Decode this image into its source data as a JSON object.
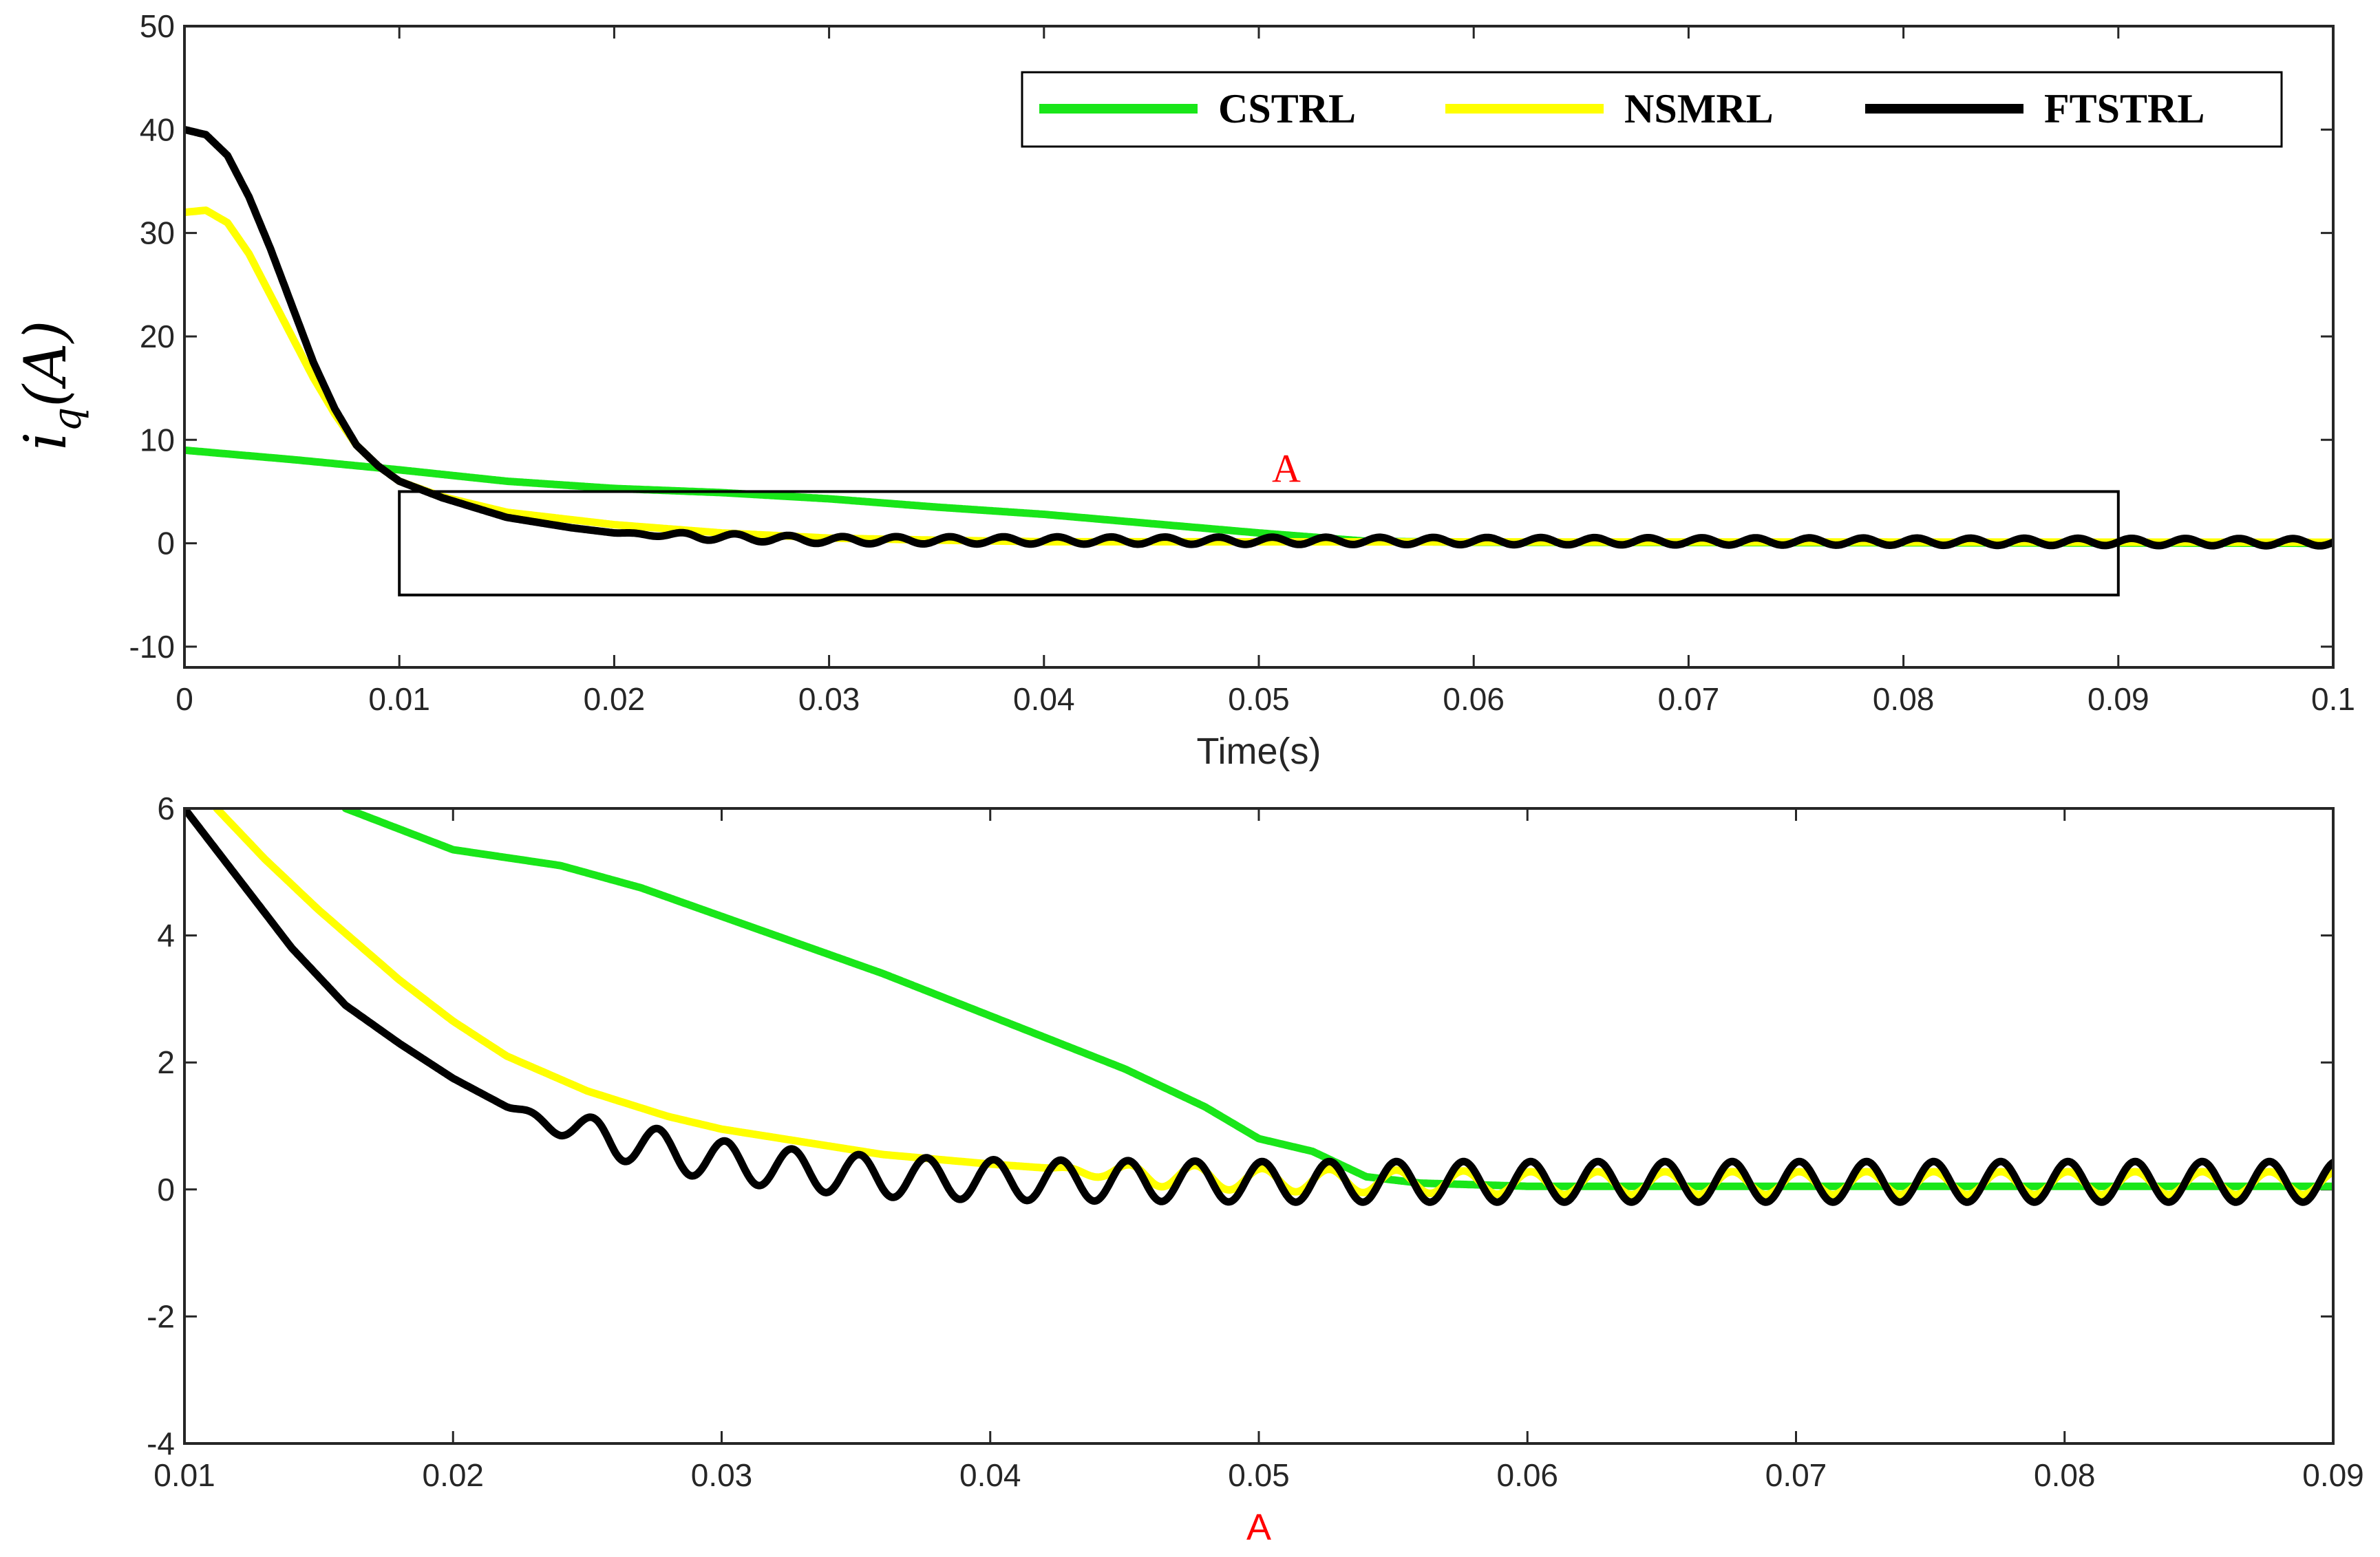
{
  "chart_data": [
    {
      "type": "line",
      "id": "top",
      "xlabel": "Time(s)",
      "ylabel": {
        "main": "i",
        "sub": "q",
        "rest": "(A)"
      },
      "xlim": [
        0,
        0.1
      ],
      "ylim": [
        -12,
        50
      ],
      "xticks": [
        0,
        0.01,
        0.02,
        0.03,
        0.04,
        0.05,
        0.06,
        0.07,
        0.08,
        0.09,
        0.1
      ],
      "xtick_labels": [
        "0",
        "0.01",
        "0.02",
        "0.03",
        "0.04",
        "0.05",
        "0.06",
        "0.07",
        "0.08",
        "0.09",
        "0.1"
      ],
      "yticks": [
        -10,
        0,
        10,
        20,
        30,
        40,
        50
      ],
      "ytick_labels": [
        "-10",
        "0",
        "10",
        "20",
        "30",
        "40",
        "50"
      ],
      "legend": {
        "position": "top-right",
        "entries": [
          "CSTRL",
          "NSMRL",
          "FTSTRL"
        ]
      },
      "zoom_box": {
        "label": "A",
        "x": [
          0.01,
          0.09
        ],
        "y": [
          -5,
          5
        ]
      },
      "series": [
        {
          "name": "CSTRL",
          "color": "#19e619",
          "points": [
            [
              0,
              9
            ],
            [
              0.005,
              8.1
            ],
            [
              0.01,
              7.1
            ],
            [
              0.015,
              6.0
            ],
            [
              0.02,
              5.3
            ],
            [
              0.025,
              4.9
            ],
            [
              0.03,
              4.3
            ],
            [
              0.035,
              3.5
            ],
            [
              0.04,
              2.8
            ],
            [
              0.045,
              1.9
            ],
            [
              0.05,
              1.0
            ],
            [
              0.055,
              0.2
            ],
            [
              0.06,
              0.1
            ],
            [
              0.1,
              0.0
            ]
          ]
        },
        {
          "name": "NSMRL",
          "color": "#ffff00",
          "points": [
            [
              0,
              32
            ],
            [
              0.001,
              32.2
            ],
            [
              0.002,
              31
            ],
            [
              0.003,
              28
            ],
            [
              0.004,
              24
            ],
            [
              0.005,
              20
            ],
            [
              0.006,
              16
            ],
            [
              0.007,
              12.5
            ],
            [
              0.008,
              9.5
            ],
            [
              0.009,
              7.5
            ],
            [
              0.01,
              6.0
            ],
            [
              0.012,
              4.5
            ],
            [
              0.015,
              3.0
            ],
            [
              0.02,
              1.8
            ],
            [
              0.025,
              1.0
            ],
            [
              0.03,
              0.5
            ],
            [
              0.035,
              0.3
            ],
            [
              0.04,
              0.15
            ],
            [
              0.1,
              0.1
            ]
          ]
        },
        {
          "name": "FTSTRL",
          "color": "#000000",
          "points": [
            [
              0,
              40
            ],
            [
              0.001,
              39.5
            ],
            [
              0.002,
              37.5
            ],
            [
              0.003,
              33.5
            ],
            [
              0.004,
              28.5
            ],
            [
              0.005,
              23
            ],
            [
              0.006,
              17.5
            ],
            [
              0.007,
              13
            ],
            [
              0.008,
              9.5
            ],
            [
              0.009,
              7.5
            ],
            [
              0.01,
              6.0
            ],
            [
              0.012,
              4.4
            ],
            [
              0.015,
              2.5
            ],
            [
              0.018,
              1.5
            ],
            [
              0.02,
              1.0
            ],
            [
              0.025,
              0.6
            ],
            [
              0.03,
              0.3
            ],
            [
              0.1,
              0.1
            ]
          ],
          "oscillation": {
            "amplitude": 0.35,
            "period": 0.0025,
            "from": 0.02
          }
        }
      ]
    },
    {
      "type": "line",
      "id": "bottom",
      "xlabel": "A",
      "xlim": [
        0.01,
        0.09
      ],
      "ylim": [
        -4,
        6
      ],
      "xticks": [
        0.01,
        0.02,
        0.03,
        0.04,
        0.05,
        0.06,
        0.07,
        0.08,
        0.09
      ],
      "xtick_labels": [
        "0.01",
        "0.02",
        "0.03",
        "0.04",
        "0.05",
        "0.06",
        "0.07",
        "0.08",
        "0.09"
      ],
      "yticks": [
        -4,
        -2,
        0,
        2,
        4,
        6
      ],
      "ytick_labels": [
        "-4",
        "-2",
        "0",
        "2",
        "4",
        "6"
      ],
      "series": [
        {
          "name": "CSTRL",
          "color": "#19e619",
          "points": [
            [
              0.016,
              6.0
            ],
            [
              0.02,
              5.35
            ],
            [
              0.024,
              5.1
            ],
            [
              0.027,
              4.75
            ],
            [
              0.03,
              4.3
            ],
            [
              0.033,
              3.85
            ],
            [
              0.036,
              3.4
            ],
            [
              0.039,
              2.9
            ],
            [
              0.042,
              2.4
            ],
            [
              0.045,
              1.9
            ],
            [
              0.048,
              1.3
            ],
            [
              0.05,
              0.8
            ],
            [
              0.052,
              0.6
            ],
            [
              0.054,
              0.2
            ],
            [
              0.056,
              0.1
            ],
            [
              0.06,
              0.05
            ],
            [
              0.07,
              0.05
            ],
            [
              0.08,
              0.05
            ],
            [
              0.09,
              0.05
            ]
          ]
        },
        {
          "name": "NSMRL",
          "color": "#ffff00",
          "points": [
            [
              0.0112,
              6.0
            ],
            [
              0.013,
              5.2
            ],
            [
              0.015,
              4.4
            ],
            [
              0.018,
              3.3
            ],
            [
              0.02,
              2.65
            ],
            [
              0.022,
              2.1
            ],
            [
              0.025,
              1.55
            ],
            [
              0.028,
              1.15
            ],
            [
              0.03,
              0.95
            ],
            [
              0.033,
              0.75
            ],
            [
              0.036,
              0.55
            ],
            [
              0.04,
              0.4
            ],
            [
              0.045,
              0.25
            ],
            [
              0.05,
              0.15
            ],
            [
              0.06,
              0.1
            ],
            [
              0.09,
              0.1
            ]
          ],
          "oscillation": {
            "amplitude": 0.18,
            "period": 0.0025,
            "from": 0.042
          }
        },
        {
          "name": "FTSTRL",
          "color": "#000000",
          "points": [
            [
              0.01,
              6.0
            ],
            [
              0.012,
              4.9
            ],
            [
              0.014,
              3.8
            ],
            [
              0.016,
              2.9
            ],
            [
              0.018,
              2.3
            ],
            [
              0.02,
              1.75
            ],
            [
              0.022,
              1.3
            ],
            [
              0.024,
              1.0
            ],
            [
              0.026,
              0.8
            ],
            [
              0.028,
              0.6
            ],
            [
              0.03,
              0.45
            ],
            [
              0.033,
              0.3
            ],
            [
              0.036,
              0.2
            ],
            [
              0.04,
              0.15
            ],
            [
              0.05,
              0.12
            ],
            [
              0.09,
              0.12
            ]
          ],
          "oscillation": {
            "amplitude": 0.32,
            "period": 0.0025,
            "from": 0.022
          }
        }
      ]
    }
  ]
}
